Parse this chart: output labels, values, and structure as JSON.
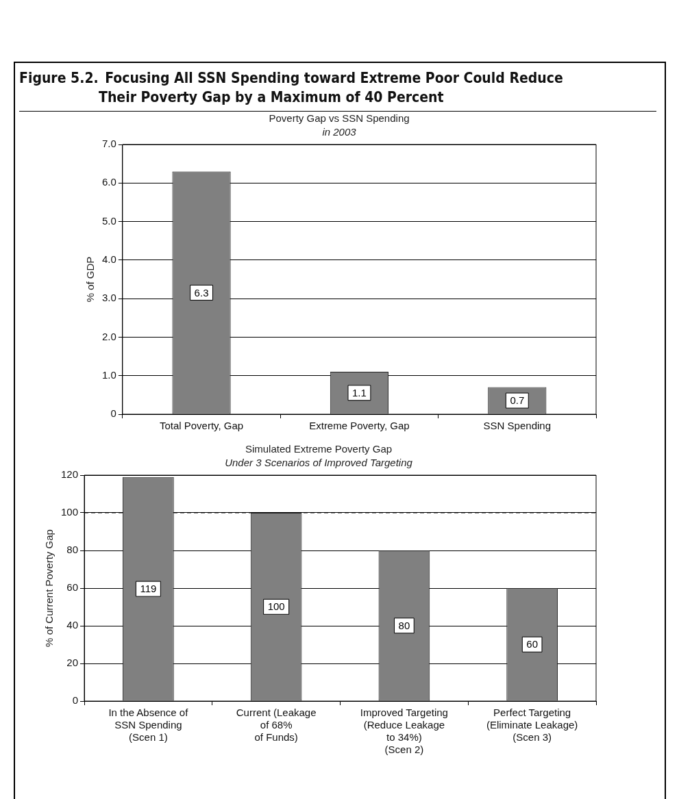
{
  "chart_data": [
    {
      "type": "bar",
      "title": "Poverty Gap vs SSN Spending",
      "subtitle": "in 2003",
      "ylabel": "% of GDP",
      "annotations": [
        "Figure 5.2. Focusing All SSN Spending toward Extreme Poor Could Reduce\nTheir Poverty Gap by a Maximum of 40 Percent"
      ],
      "categories": [
        "Total Poverty, Gap",
        "Extreme Poverty, Gap",
        "SSN Spending"
      ],
      "values": [
        6.3,
        1.1,
        0.7
      ],
      "color": "#808080",
      "ylim": [
        0,
        7
      ],
      "yticks": [
        0,
        {
          "value": 1,
          "label": "1.0"
        },
        {
          "value": 2,
          "label": "2.0"
        },
        {
          "value": 3,
          "label": "3.0"
        },
        {
          "value": 4,
          "label": "4.0"
        },
        {
          "value": 5,
          "label": "5.0"
        },
        {
          "value": 6,
          "label": "6.0"
        },
        {
          "value": 7,
          "label": "7.0"
        }
      ],
      "grid": "y",
      "legend": false,
      "data_labels": true
    },
    {
      "type": "bar",
      "title": "Simulated Extreme Poverty Gap",
      "subtitle": "Under 3 Scenarios of Improved Targeting",
      "ylabel": "% of Current Poverty Gap",
      "categories": [
        "In the Absence of\nSSN Spending\n(Scen 1)",
        "Current (Leakage\nof 68%\nof Funds)",
        "Improved Targeting\n(Reduce Leakage\nto 34%)\n(Scen 2)",
        "Perfect Targeting\n(Eliminate Leakage)\n(Scen 3)"
      ],
      "values": [
        119,
        100,
        80,
        60
      ],
      "color": "#808080",
      "ylim": [
        0,
        120
      ],
      "yticks": [
        0,
        20,
        40,
        60,
        80,
        100,
        120
      ],
      "ref_lines": [
        {
          "axis": "y",
          "value": 100,
          "line_style": "dashed",
          "color": "#000000"
        }
      ],
      "grid": "y",
      "legend": false,
      "data_labels": true
    }
  ]
}
